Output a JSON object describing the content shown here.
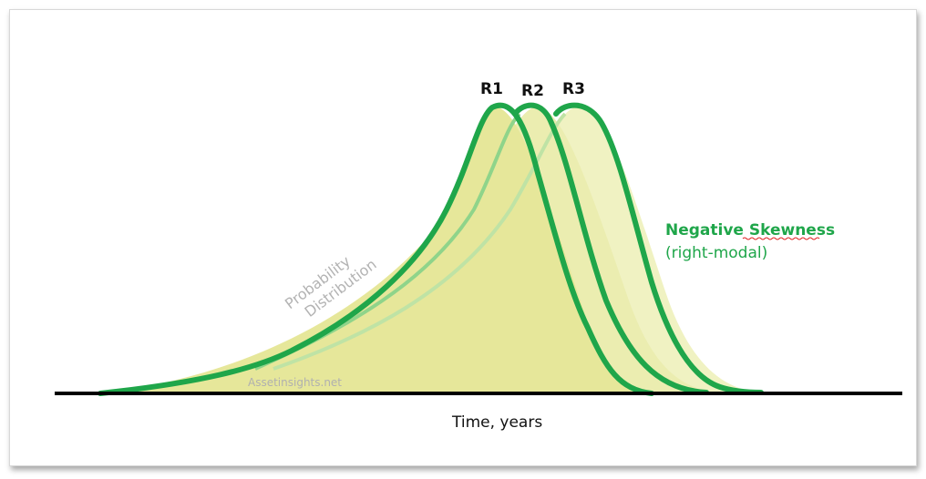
{
  "diagram": {
    "curves": [
      {
        "label": "R1"
      },
      {
        "label": "R2"
      },
      {
        "label": "R3"
      }
    ],
    "x_axis_title": "Time, years",
    "annotation_title": "Negative Skewness",
    "annotation_subtitle": "(right-modal)",
    "curve_caption_line1": "Probability",
    "curve_caption_line2": "Distribution",
    "watermark": "Assetinsights.net",
    "colors": {
      "curve_stroke": "#1fa64a",
      "curve_stroke_light": "#8fd48a",
      "fill_r1": "#e6e79a",
      "fill_r3": "#f0f2c2",
      "axis": "#000000"
    }
  }
}
